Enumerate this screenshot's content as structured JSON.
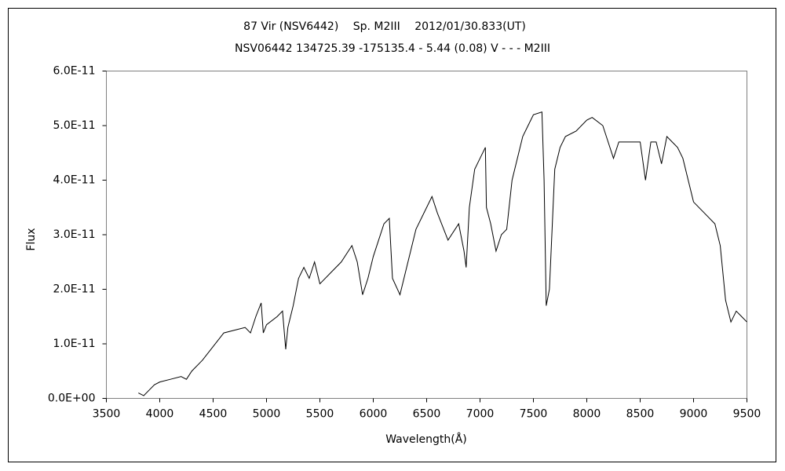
{
  "chart_data": {
    "type": "line",
    "title": "87 Vir (NSV6442)　 Sp. M2III　 2012/01/30.833(UT)",
    "subtitle": "NSV06442 134725.39 -175135.4 - 5.44 (0.08) V - - - M2III",
    "x_label": "Wavelength(Å)",
    "y_label": "Flux",
    "x": [
      3800,
      3850,
      3900,
      3950,
      4000,
      4100,
      4200,
      4250,
      4300,
      4400,
      4500,
      4600,
      4700,
      4800,
      4850,
      4900,
      4950,
      4970,
      5000,
      5100,
      5150,
      5180,
      5200,
      5250,
      5300,
      5350,
      5400,
      5450,
      5500,
      5600,
      5700,
      5800,
      5850,
      5900,
      5950,
      6000,
      6100,
      6150,
      6180,
      6250,
      6300,
      6400,
      6500,
      6550,
      6600,
      6700,
      6800,
      6850,
      6870,
      6900,
      6950,
      7000,
      7050,
      7060,
      7100,
      7150,
      7200,
      7250,
      7300,
      7400,
      7450,
      7500,
      7580,
      7600,
      7620,
      7650,
      7700,
      7750,
      7800,
      7900,
      8000,
      8050,
      8150,
      8200,
      8250,
      8300,
      8400,
      8500,
      8550,
      8600,
      8650,
      8700,
      8750,
      8800,
      8850,
      8900,
      8950,
      9000,
      9100,
      9200,
      9250,
      9300,
      9350,
      9400,
      9450,
      9500
    ],
    "series": [
      {
        "color": "#000000",
        "values": [
          1e-12,
          5e-13,
          1.5e-12,
          2.5e-12,
          3e-12,
          3.5e-12,
          4e-12,
          3.5e-12,
          5e-12,
          7e-12,
          9.5e-12,
          1.2e-11,
          1.25e-11,
          1.3e-11,
          1.2e-11,
          1.5e-11,
          1.75e-11,
          1.2e-11,
          1.35e-11,
          1.5e-11,
          1.6e-11,
          9e-12,
          1.3e-11,
          1.7e-11,
          2.2e-11,
          2.4e-11,
          2.2e-11,
          2.5e-11,
          2.1e-11,
          2.3e-11,
          2.5e-11,
          2.8e-11,
          2.5e-11,
          1.9e-11,
          2.2e-11,
          2.6e-11,
          3.2e-11,
          3.3e-11,
          2.2e-11,
          1.9e-11,
          2.3e-11,
          3.1e-11,
          3.5e-11,
          3.7e-11,
          3.4e-11,
          2.9e-11,
          3.2e-11,
          2.7e-11,
          2.4e-11,
          3.5e-11,
          4.2e-11,
          4.4e-11,
          4.6e-11,
          3.5e-11,
          3.2e-11,
          2.7e-11,
          3e-11,
          3.1e-11,
          4e-11,
          4.8e-11,
          5e-11,
          5.2e-11,
          5.25e-11,
          4e-11,
          1.7e-11,
          2e-11,
          4.2e-11,
          4.6e-11,
          4.8e-11,
          4.9e-11,
          5.1e-11,
          5.15e-11,
          5e-11,
          4.7e-11,
          4.4e-11,
          4.7e-11,
          4.7e-11,
          4.7e-11,
          4e-11,
          4.7e-11,
          4.7e-11,
          4.3e-11,
          4.8e-11,
          4.7e-11,
          4.6e-11,
          4.4e-11,
          4e-11,
          3.6e-11,
          3.4e-11,
          3.2e-11,
          2.8e-11,
          1.8e-11,
          1.4e-11,
          1.6e-11,
          1.5e-11,
          1.4e-11
        ]
      }
    ],
    "xlim": [
      3500,
      9500
    ],
    "xticks": [
      3500,
      4000,
      4500,
      5000,
      5500,
      6000,
      6500,
      7000,
      7500,
      8000,
      8500,
      9000,
      9500
    ],
    "ylim": [
      0,
      6e-11
    ],
    "yticks": [
      {
        "value": 0,
        "label": "0.0E+00"
      },
      {
        "value": 1e-11,
        "label": "1.0E-11"
      },
      {
        "value": 2e-11,
        "label": "2.0E-11"
      },
      {
        "value": 3e-11,
        "label": "3.0E-11"
      },
      {
        "value": 4e-11,
        "label": "4.0E-11"
      },
      {
        "value": 5e-11,
        "label": "5.0E-11"
      },
      {
        "value": 6e-11,
        "label": "6.0E-11"
      }
    ]
  }
}
